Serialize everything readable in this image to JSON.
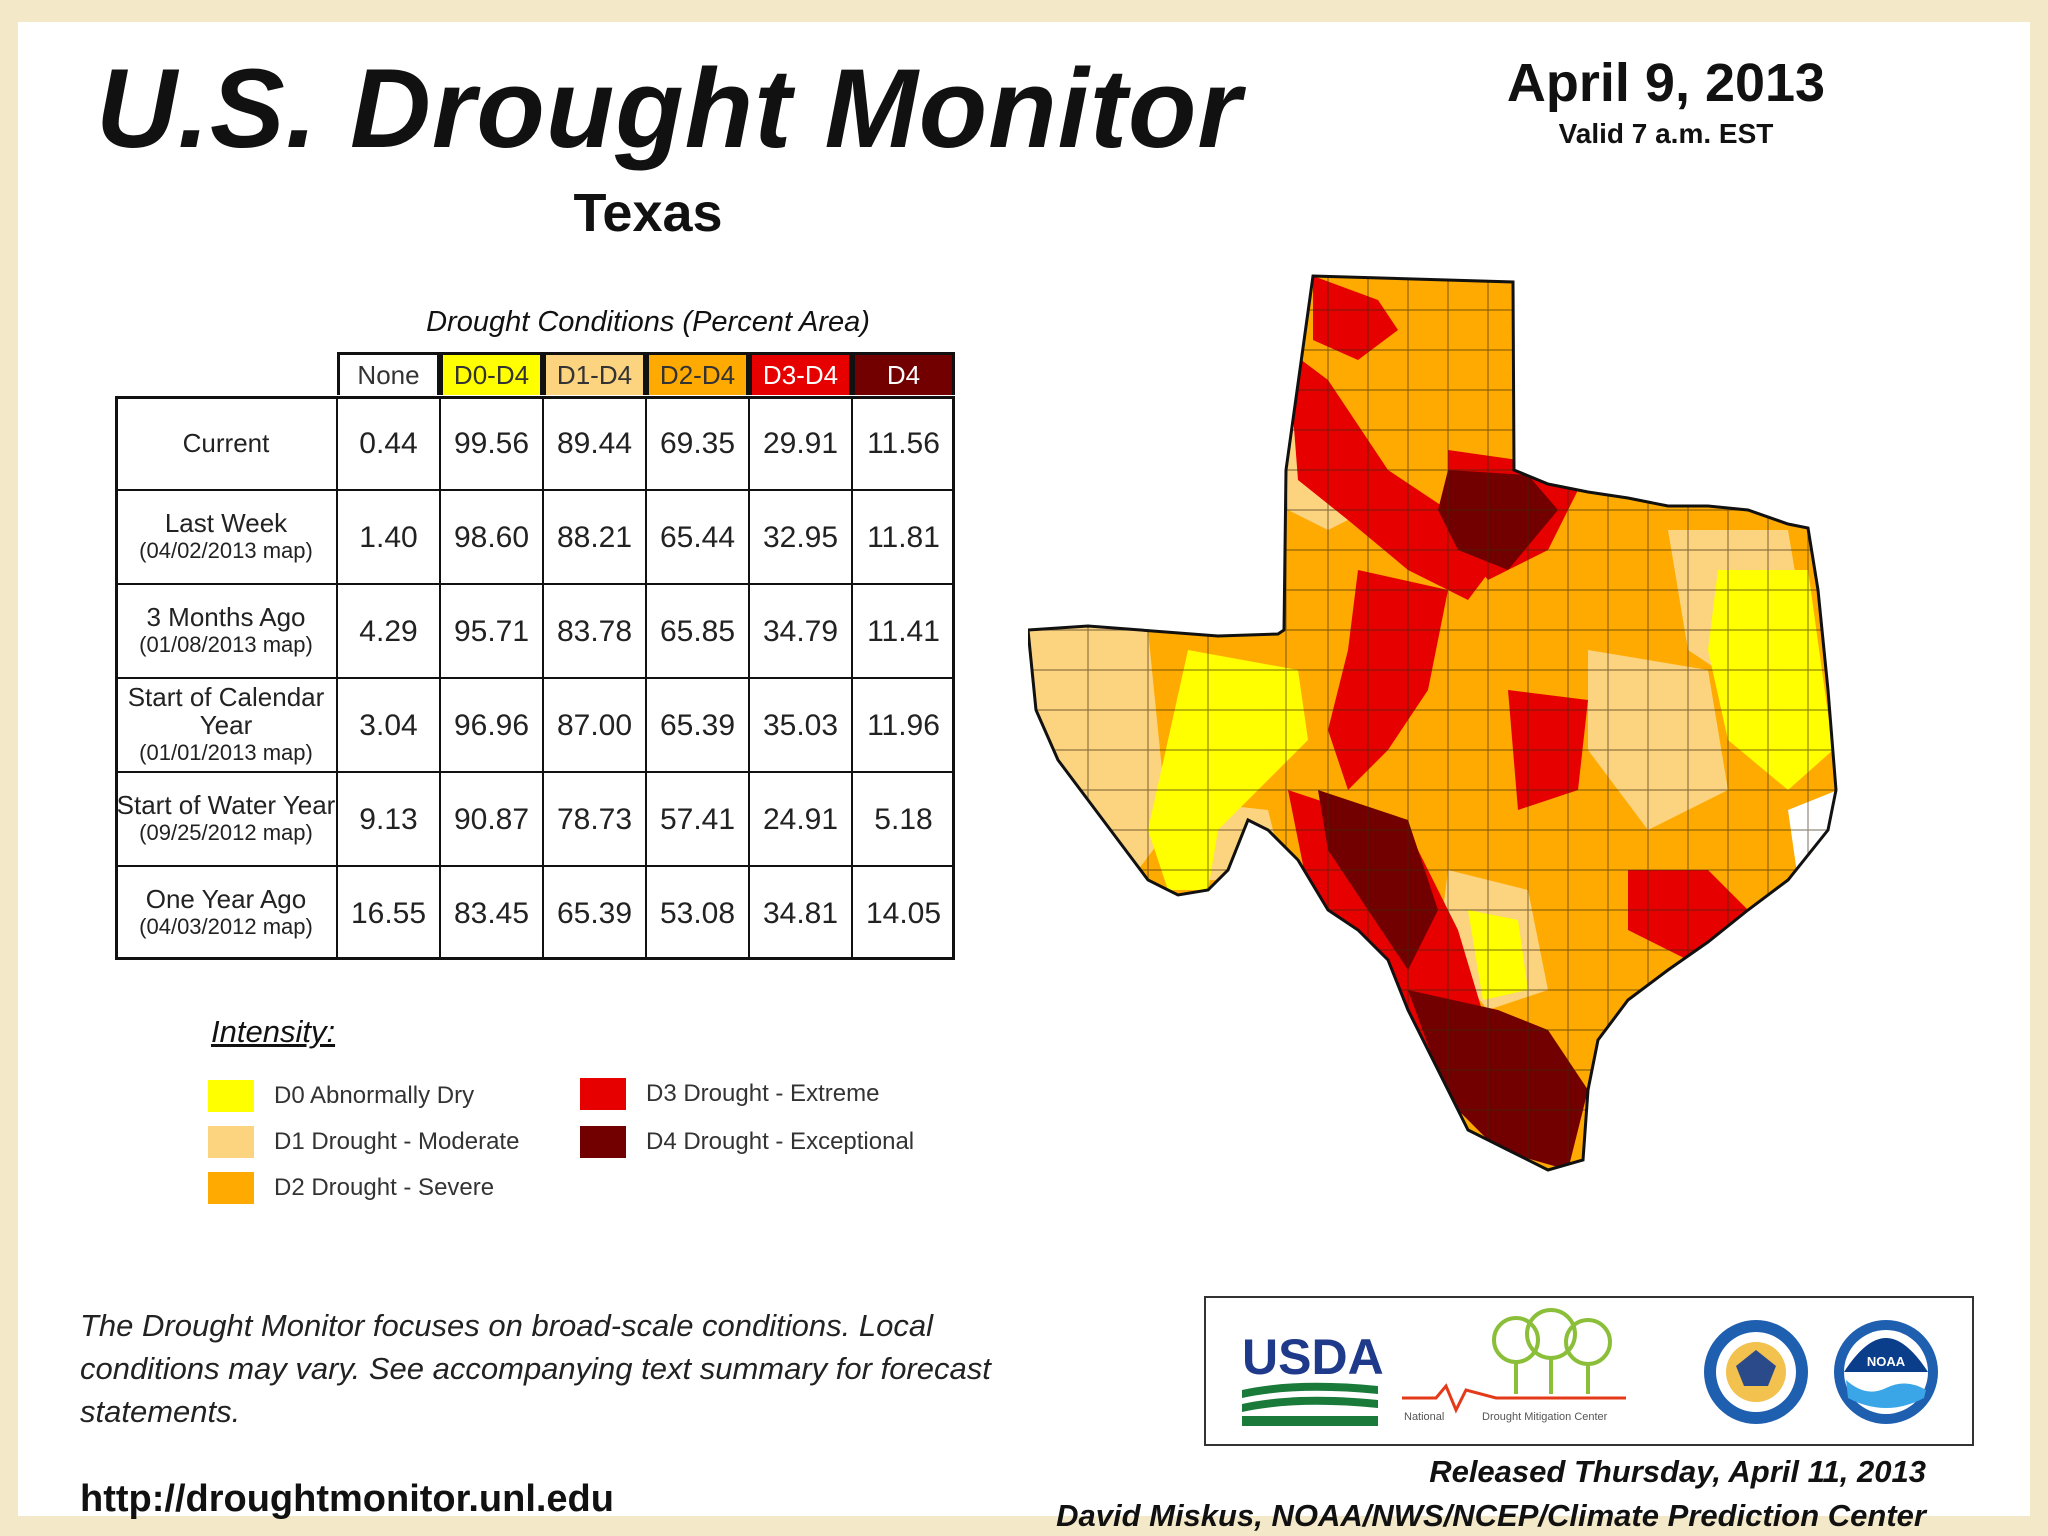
{
  "title": "U.S. Drought Monitor",
  "date": "April 9, 2013",
  "valid": "Valid 7 a.m. EST",
  "region": "Texas",
  "table": {
    "caption": "Drought Conditions (Percent Area)",
    "columns": [
      "None",
      "D0-D4",
      "D1-D4",
      "D2-D4",
      "D3-D4",
      "D4"
    ],
    "column_colors": [
      "#ffffff",
      "#ffff00",
      "#fcd37f",
      "#ffaa00",
      "#e60000",
      "#730000"
    ],
    "rows": [
      {
        "label": "Current",
        "sub": "",
        "values": [
          "0.44",
          "99.56",
          "89.44",
          "69.35",
          "29.91",
          "11.56"
        ]
      },
      {
        "label": "Last Week",
        "sub": "(04/02/2013 map)",
        "values": [
          "1.40",
          "98.60",
          "88.21",
          "65.44",
          "32.95",
          "11.81"
        ]
      },
      {
        "label": "3 Months Ago",
        "sub": "(01/08/2013 map)",
        "values": [
          "4.29",
          "95.71",
          "83.78",
          "65.85",
          "34.79",
          "11.41"
        ]
      },
      {
        "label": "Start of Calendar Year",
        "sub": "(01/01/2013 map)",
        "values": [
          "3.04",
          "96.96",
          "87.00",
          "65.39",
          "35.03",
          "11.96"
        ]
      },
      {
        "label": "Start of Water Year",
        "sub": "(09/25/2012 map)",
        "values": [
          "9.13",
          "90.87",
          "78.73",
          "57.41",
          "24.91",
          "5.18"
        ]
      },
      {
        "label": "One Year Ago",
        "sub": "(04/03/2012 map)",
        "values": [
          "16.55",
          "83.45",
          "65.39",
          "53.08",
          "34.81",
          "14.05"
        ]
      }
    ]
  },
  "legend": {
    "title": "Intensity:",
    "items": [
      {
        "label": "D0 Abnormally Dry",
        "color": "#ffff00"
      },
      {
        "label": "D1 Drought - Moderate",
        "color": "#fcd37f"
      },
      {
        "label": "D2 Drought - Severe",
        "color": "#ffaa00"
      },
      {
        "label": "D3 Drought - Extreme",
        "color": "#e60000"
      },
      {
        "label": "D4 Drought - Exceptional",
        "color": "#730000"
      }
    ]
  },
  "disclaimer": "The Drought Monitor focuses on broad-scale conditions. Local conditions may vary. See accompanying text summary for forecast statements.",
  "url": "http://droughtmonitor.unl.edu",
  "logos": {
    "usda": "USDA",
    "ndmc_left": "National",
    "ndmc_right": "Drought Mitigation Center",
    "noaa": "NOAA"
  },
  "released": "Released Thursday, April 11, 2013",
  "author": "David Miskus, NOAA/NWS/NCEP/Climate Prediction Center"
}
